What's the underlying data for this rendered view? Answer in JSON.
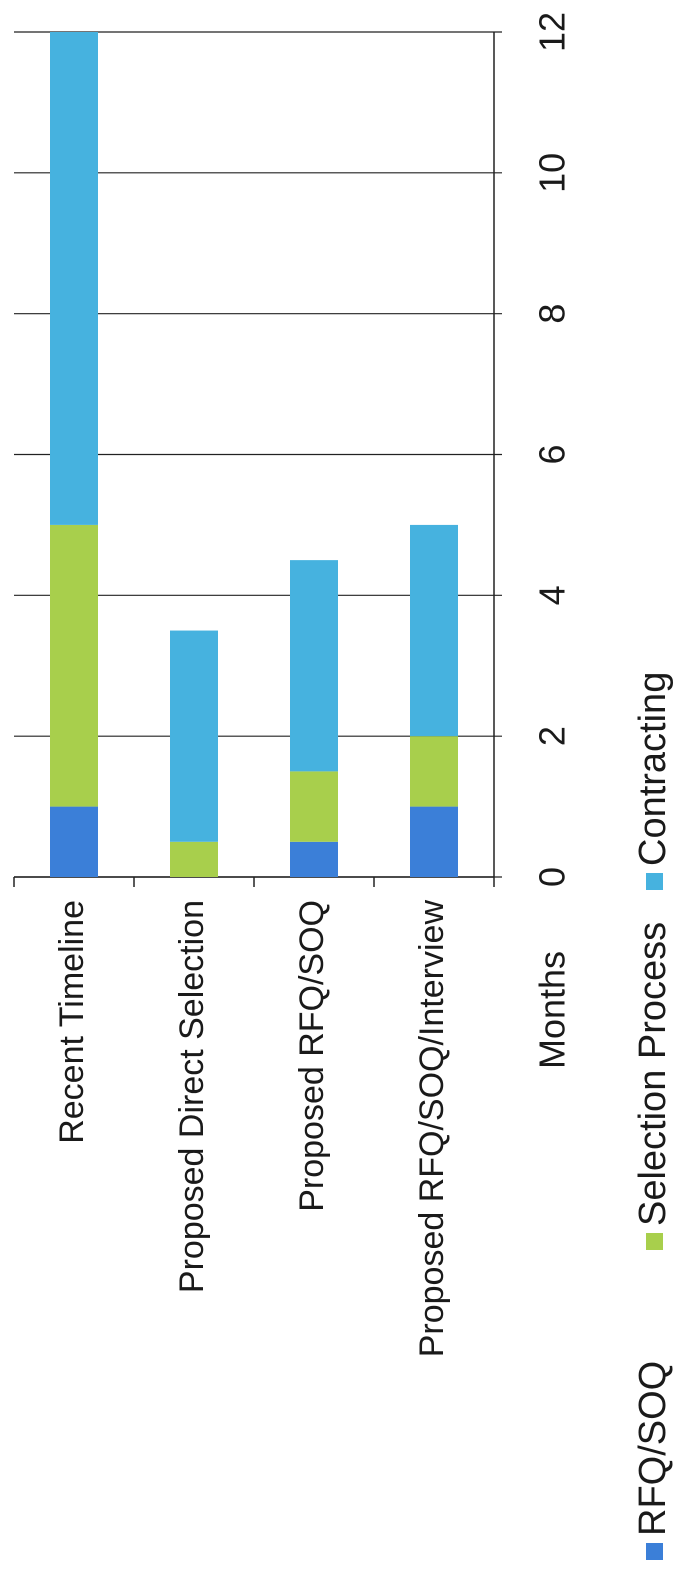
{
  "chart_data": {
    "type": "stacked_bar",
    "categories": [
      "Recent Timeline",
      "Proposed Direct Selection",
      "Proposed RFQ/SOQ",
      "Proposed RFQ/SOQ/Interview"
    ],
    "series": [
      {
        "name": "RFQ/SOQ",
        "color": "#3b7fd8",
        "values": [
          1,
          0,
          0.5,
          1
        ]
      },
      {
        "name": "Selection Process",
        "color": "#a8cf4c",
        "values": [
          4,
          0.5,
          1,
          1
        ]
      },
      {
        "name": "Contracting",
        "color": "#46b2df",
        "values": [
          7,
          3,
          3,
          3
        ]
      }
    ],
    "y_label": "Months",
    "ylim": [
      0,
      12
    ],
    "yticks": [
      0,
      2,
      4,
      6,
      8,
      10,
      12
    ],
    "grid": true,
    "legend": "bottom"
  }
}
